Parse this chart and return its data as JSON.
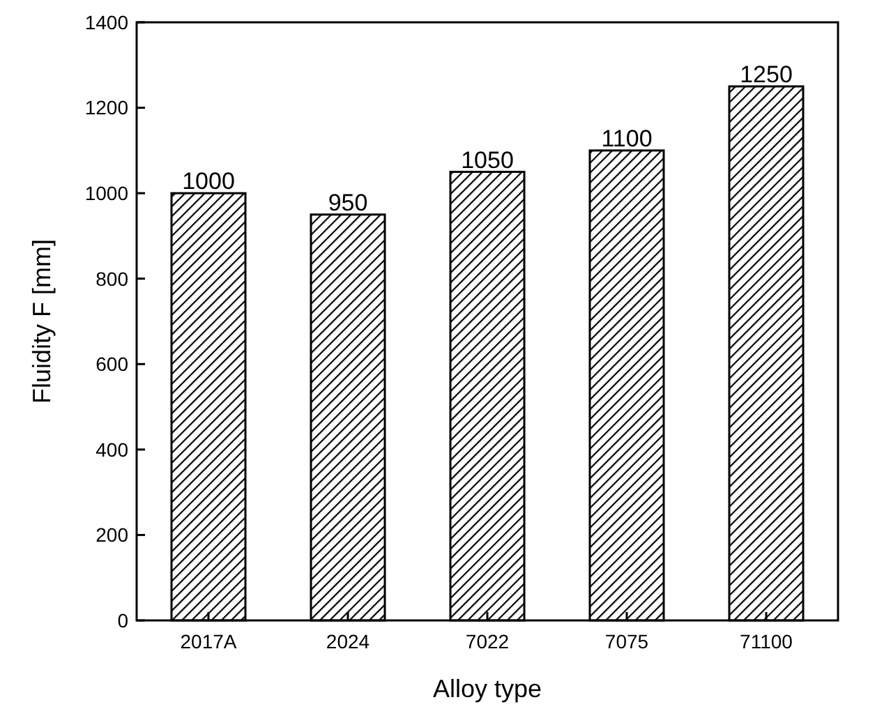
{
  "chart_data": {
    "type": "bar",
    "xlabel": "Alloy type",
    "ylabel": "Fluidity F [mm]",
    "categories": [
      "2017A",
      "2024",
      "7022",
      "7075",
      "71100"
    ],
    "values": [
      1000,
      950,
      1050,
      1100,
      1250
    ],
    "color": "#000000",
    "ylim": [
      0,
      1400
    ],
    "yticks": [
      0,
      200,
      400,
      600,
      800,
      1000,
      1200,
      1400
    ],
    "data_labels": true,
    "grid": false
  }
}
